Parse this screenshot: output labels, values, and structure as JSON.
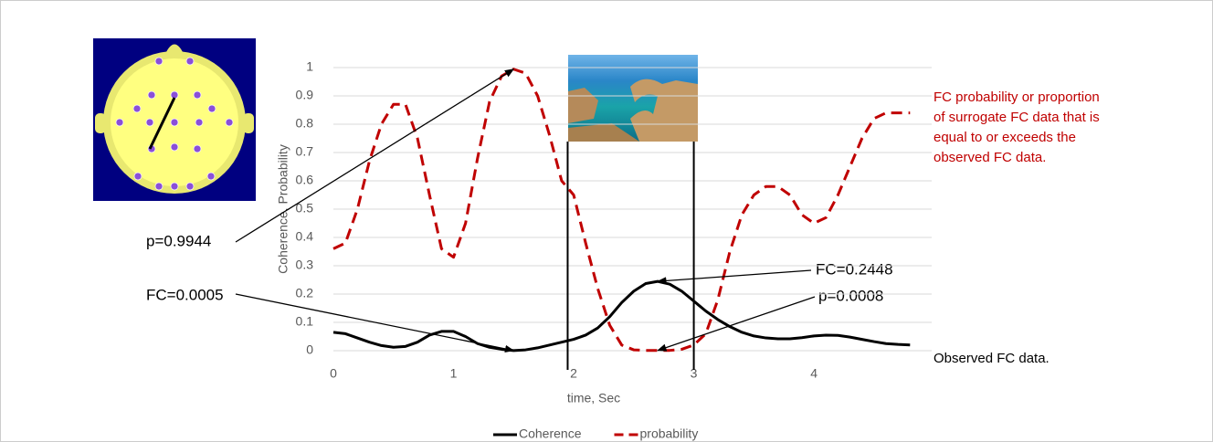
{
  "chart_data": {
    "type": "line",
    "xlabel": "time, Sec",
    "ylabel": "Coherence, Probability",
    "x": [
      0,
      0.1,
      0.2,
      0.3,
      0.4,
      0.5,
      0.6,
      0.7,
      0.8,
      0.9,
      1.0,
      1.1,
      1.2,
      1.3,
      1.4,
      1.5,
      1.6,
      1.7,
      1.8,
      1.9,
      2.0,
      2.1,
      2.2,
      2.3,
      2.4,
      2.5,
      2.6,
      2.7,
      2.8,
      2.9,
      3.0,
      3.1,
      3.2,
      3.3,
      3.4,
      3.5,
      3.6,
      3.7,
      3.8,
      3.9,
      4.0,
      4.1,
      4.2,
      4.3,
      4.4,
      4.5,
      4.6,
      4.7,
      4.8
    ],
    "series": [
      {
        "name": "Coherence",
        "color": "#000000",
        "dashed": false,
        "values": [
          0.065,
          0.06,
          0.045,
          0.03,
          0.018,
          0.012,
          0.015,
          0.03,
          0.055,
          0.068,
          0.068,
          0.05,
          0.025,
          0.012,
          0.005,
          0.0005,
          0.003,
          0.01,
          0.02,
          0.03,
          0.04,
          0.055,
          0.08,
          0.12,
          0.17,
          0.21,
          0.237,
          0.2448,
          0.235,
          0.21,
          0.175,
          0.14,
          0.11,
          0.085,
          0.065,
          0.052,
          0.045,
          0.042,
          0.042,
          0.046,
          0.052,
          0.055,
          0.054,
          0.048,
          0.04,
          0.032,
          0.025,
          0.022,
          0.02
        ]
      },
      {
        "name": "probability",
        "color": "#c00000",
        "dashed": true,
        "values": [
          0.36,
          0.38,
          0.5,
          0.67,
          0.8,
          0.87,
          0.87,
          0.75,
          0.55,
          0.36,
          0.33,
          0.45,
          0.68,
          0.88,
          0.97,
          0.9944,
          0.98,
          0.9,
          0.76,
          0.6,
          0.55,
          0.38,
          0.22,
          0.09,
          0.02,
          0.003,
          0.001,
          0.0008,
          0.001,
          0.005,
          0.02,
          0.06,
          0.18,
          0.35,
          0.48,
          0.55,
          0.58,
          0.58,
          0.55,
          0.48,
          0.45,
          0.47,
          0.55,
          0.65,
          0.75,
          0.82,
          0.84,
          0.84,
          0.84
        ]
      }
    ],
    "xlim": [
      0,
      4.98
    ],
    "ylim": [
      0,
      1
    ],
    "xticks": [
      0,
      1,
      2,
      3,
      4
    ],
    "yticks": [
      0,
      0.1,
      0.2,
      0.3,
      0.4,
      0.5,
      0.6,
      0.7,
      0.8,
      0.9,
      1
    ],
    "grid": true,
    "legend": "bottom",
    "markers": [
      1.95,
      3.0
    ],
    "annotations": [
      {
        "text": "p=0.9944",
        "x": 1.5,
        "y": 0.9944
      },
      {
        "text": "FC=0.0005",
        "x": 1.5,
        "y": 0.0005
      },
      {
        "text": "FC=0.2448",
        "x": 2.7,
        "y": 0.2448
      },
      {
        "text": "p=0.0008",
        "x": 2.7,
        "y": 0.0008
      }
    ],
    "notes": [
      "FC probability or proportion",
      "of surrogate FC data that is",
      "equal to or exceeds the",
      "observed FC data."
    ],
    "series_note": "Observed FC data."
  }
}
